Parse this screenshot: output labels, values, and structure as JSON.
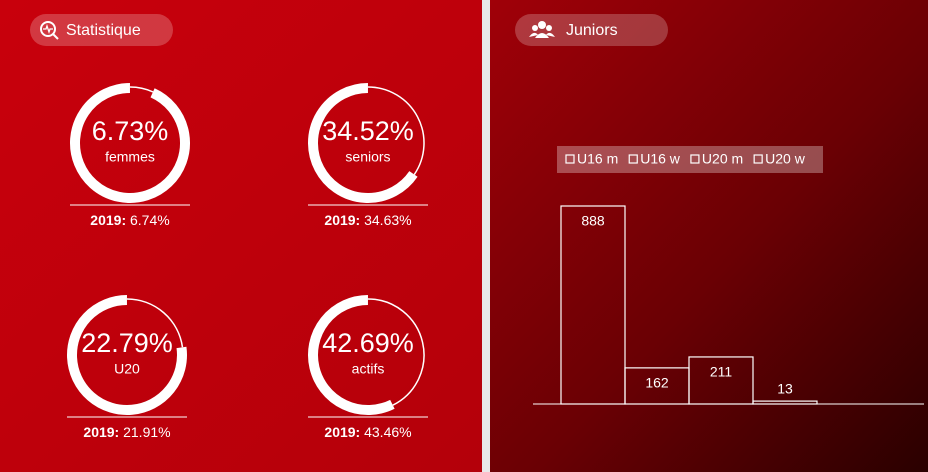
{
  "left_panel": {
    "title": "Statistique",
    "stats": [
      {
        "value": 6.73,
        "value_label": "6.73%",
        "label": "femmes",
        "prev_label": "2019:",
        "prev_value": "6.74%"
      },
      {
        "value": 34.52,
        "value_label": "34.52%",
        "label": "seniors",
        "prev_label": "2019:",
        "prev_value": "34.63%"
      },
      {
        "value": 22.79,
        "value_label": "22.79%",
        "label": "U20",
        "prev_label": "2019:",
        "prev_value": "21.91%"
      },
      {
        "value": 42.69,
        "value_label": "42.69%",
        "label": "actifs",
        "prev_label": "2019:",
        "prev_value": "43.46%"
      }
    ]
  },
  "right_panel": {
    "title": "Juniors",
    "chart_data": {
      "type": "bar",
      "categories": [
        "U16 m",
        "U16 w",
        "U20 m",
        "U20 w"
      ],
      "values": [
        888,
        162,
        211,
        13
      ],
      "color": "#ffffff"
    }
  }
}
